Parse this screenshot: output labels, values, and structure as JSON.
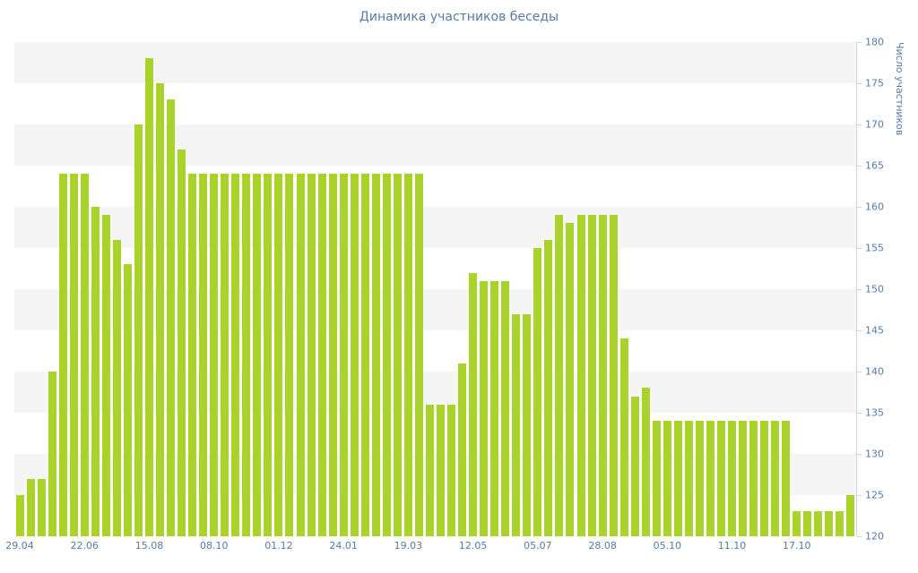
{
  "title": "Динамика участников беседы",
  "colors": {
    "bar": "#a9d32b",
    "text": "#557ba6",
    "band": "#f5f5f5",
    "axis": "#ccd6e0",
    "background": "#ffffff"
  },
  "chart_data": {
    "type": "bar",
    "title": "Динамика участников беседы",
    "ylabel": "Число участников",
    "xlabel": "",
    "ylim": [
      120,
      180
    ],
    "y_ticks": [
      120,
      125,
      130,
      135,
      140,
      145,
      150,
      155,
      160,
      165,
      170,
      175,
      180
    ],
    "x_tick_labels": [
      "29.04",
      "22.06",
      "15.08",
      "08.10",
      "01.12",
      "24.01",
      "19.03",
      "12.05",
      "05.07",
      "28.08",
      "05.10",
      "11.10",
      "17.10"
    ],
    "x_tick_every": 6,
    "legend": "off",
    "grid": "alternating-horizontal-bands",
    "values": [
      125,
      127,
      127,
      140,
      164,
      164,
      164,
      160,
      159,
      156,
      153,
      170,
      178,
      175,
      173,
      167,
      164,
      164,
      164,
      164,
      164,
      164,
      164,
      164,
      164,
      164,
      164,
      164,
      164,
      164,
      164,
      164,
      164,
      164,
      164,
      164,
      164,
      164,
      136,
      136,
      136,
      141,
      152,
      151,
      151,
      151,
      147,
      147,
      155,
      156,
      159,
      158,
      159,
      159,
      159,
      159,
      144,
      137,
      138,
      134,
      134,
      134,
      134,
      134,
      134,
      134,
      134,
      134,
      134,
      134,
      134,
      134,
      123,
      123,
      123,
      123,
      123,
      125
    ]
  }
}
